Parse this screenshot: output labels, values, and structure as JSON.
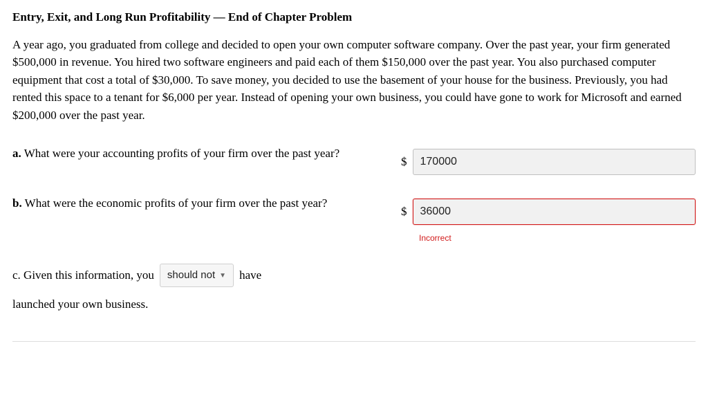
{
  "title": "Entry, Exit, and Long Run Profitability — End of Chapter Problem",
  "intro": "A year ago, you graduated from college and decided to open your own computer software company. Over the past year, your firm generated $500,000 in revenue. You hired two software engineers and paid each of them $150,000 over the past year. You also purchased computer equipment that cost a total of $30,000. To save money, you decided to use the basement of your house for the business. Previously, you had rented this space to a tenant for $6,000 per year. Instead of opening your own business, you could have gone to work for Microsoft and earned $200,000 over the past year.",
  "part_a": {
    "label": "a.",
    "text": " What were your accounting profits of your firm over the past year?",
    "currency": "$",
    "value": "170000"
  },
  "part_b": {
    "label": "b.",
    "text": " What were the economic profits of your firm over the past year?",
    "currency": "$",
    "value": "36000",
    "feedback": "Incorrect"
  },
  "part_c": {
    "label": "c.",
    "before": " Given this information, you",
    "dropdown_value": "should not",
    "after1": "have",
    "after2": "launched your own business."
  }
}
